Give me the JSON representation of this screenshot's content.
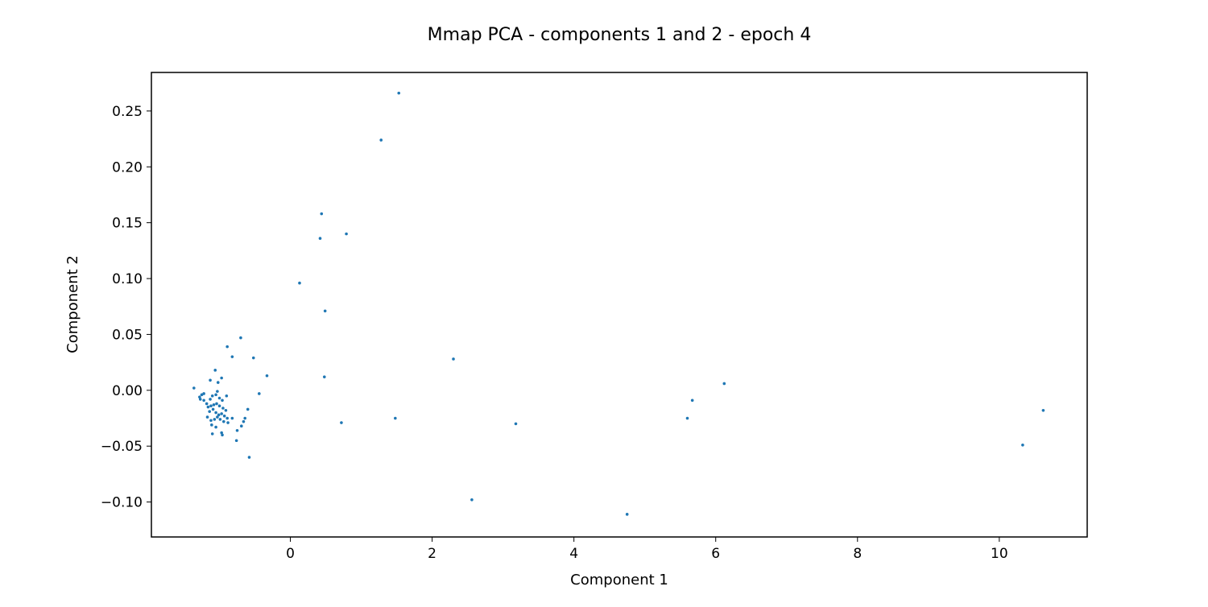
{
  "chart_data": {
    "type": "scatter",
    "title": "Mmap PCA - components 1 and 2 - epoch 4",
    "xlabel": "Component 1",
    "ylabel": "Component 2",
    "xlim": [
      -1.96,
      11.24
    ],
    "ylim": [
      -0.1313,
      0.2845
    ],
    "xticks": [
      0,
      2,
      4,
      6,
      8,
      10
    ],
    "xtick_labels": [
      "0",
      "2",
      "4",
      "6",
      "8",
      "10"
    ],
    "yticks": [
      -0.1,
      -0.05,
      0.0,
      0.05,
      0.1,
      0.15,
      0.2,
      0.25
    ],
    "ytick_labels": [
      "−0.10",
      "−0.05",
      "0.00",
      "0.05",
      "0.10",
      "0.15",
      "0.20",
      "0.25"
    ],
    "grid": false,
    "legend": "none",
    "marker_color": "#1f77b4",
    "series": [
      {
        "points": [
          [
            1.53,
            0.266
          ],
          [
            1.28,
            0.224
          ],
          [
            0.44,
            0.158
          ],
          [
            0.42,
            0.136
          ],
          [
            0.79,
            0.14
          ],
          [
            0.13,
            0.096
          ],
          [
            0.49,
            0.071
          ],
          [
            0.48,
            0.012
          ],
          [
            2.3,
            0.028
          ],
          [
            -0.7,
            0.047
          ],
          [
            -0.89,
            0.039
          ],
          [
            -0.82,
            0.03
          ],
          [
            -0.52,
            0.029
          ],
          [
            -0.33,
            0.013
          ],
          [
            -1.06,
            0.018
          ],
          [
            -1.13,
            0.009
          ],
          [
            -0.97,
            0.011
          ],
          [
            -1.02,
            0.007
          ],
          [
            -0.44,
            -0.003
          ],
          [
            -1.36,
            0.002
          ],
          [
            -1.25,
            -0.004
          ],
          [
            -1.28,
            -0.006
          ],
          [
            -1.22,
            -0.003
          ],
          [
            -1.27,
            -0.008
          ],
          [
            -1.22,
            -0.009
          ],
          [
            -1.18,
            -0.012
          ],
          [
            -1.13,
            -0.008
          ],
          [
            -1.1,
            -0.005
          ],
          [
            -1.05,
            -0.004
          ],
          [
            -1.03,
            -0.001
          ],
          [
            -1.0,
            -0.007
          ],
          [
            -0.96,
            -0.009
          ],
          [
            -0.9,
            -0.005
          ],
          [
            -1.16,
            -0.015
          ],
          [
            -1.12,
            -0.014
          ],
          [
            -1.08,
            -0.013
          ],
          [
            -1.04,
            -0.012
          ],
          [
            -1.0,
            -0.014
          ],
          [
            -0.95,
            -0.016
          ],
          [
            -0.91,
            -0.018
          ],
          [
            -1.14,
            -0.019
          ],
          [
            -1.09,
            -0.017
          ],
          [
            -1.05,
            -0.02
          ],
          [
            -1.01,
            -0.022
          ],
          [
            -0.97,
            -0.021
          ],
          [
            -0.93,
            -0.023
          ],
          [
            -0.89,
            -0.025
          ],
          [
            -1.17,
            -0.024
          ],
          [
            -1.12,
            -0.027
          ],
          [
            -1.07,
            -0.026
          ],
          [
            -1.03,
            -0.024
          ],
          [
            -0.99,
            -0.026
          ],
          [
            -0.94,
            -0.028
          ],
          [
            -0.88,
            -0.029
          ],
          [
            -0.82,
            -0.025
          ],
          [
            -1.11,
            -0.031
          ],
          [
            -1.05,
            -0.033
          ],
          [
            -0.97,
            -0.038
          ],
          [
            -0.96,
            -0.04
          ],
          [
            -1.1,
            -0.039
          ],
          [
            -0.75,
            -0.036
          ],
          [
            -0.69,
            -0.032
          ],
          [
            -0.66,
            -0.028
          ],
          [
            -0.64,
            -0.025
          ],
          [
            -0.6,
            -0.017
          ],
          [
            -0.76,
            -0.045
          ],
          [
            -0.58,
            -0.06
          ],
          [
            0.72,
            -0.029
          ],
          [
            1.48,
            -0.025
          ],
          [
            3.18,
            -0.03
          ],
          [
            2.56,
            -0.098
          ],
          [
            4.75,
            -0.111
          ],
          [
            5.6,
            -0.025
          ],
          [
            5.67,
            -0.009
          ],
          [
            6.12,
            0.006
          ],
          [
            10.33,
            -0.049
          ],
          [
            10.62,
            -0.018
          ]
        ]
      }
    ]
  }
}
